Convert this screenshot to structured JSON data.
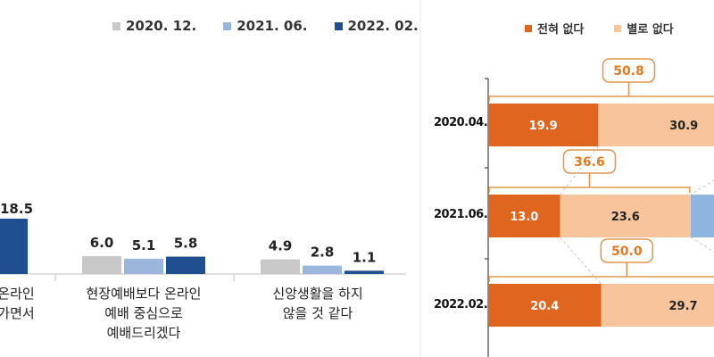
{
  "chart_data": [
    {
      "type": "bar",
      "categories": [
        "현장예배보다 온라인 예배 중심으로 예배드리겠다",
        "신앙생활을 하지 않을 것 같다"
      ],
      "partial_category_label": "온라인\n가면서",
      "partial_value": 18.5,
      "series": [
        {
          "name": "2020. 12.",
          "values": [
            6.0,
            4.9
          ],
          "color": "#c8c8c8"
        },
        {
          "name": "2021. 06.",
          "values": [
            5.1,
            2.8
          ],
          "color": "#9ab6dd"
        },
        {
          "name": "2022. 02.",
          "values": [
            5.8,
            1.1
          ],
          "color": "#1f4e91"
        }
      ],
      "value_labels": [
        [
          "6.0",
          "5.1",
          "5.8"
        ],
        [
          "4.9",
          "2.8",
          "1.1"
        ]
      ],
      "category_display": [
        "현장예배보다 온라인\n예배 중심으로\n예배드리겠다",
        "신앙생활을 하지\n않을 것 같다"
      ],
      "legend_position": "top-right",
      "grid": false
    },
    {
      "type": "bar",
      "orientation": "horizontal",
      "stacked": true,
      "categories": [
        "2020.04.",
        "2021.06.",
        "2022.02."
      ],
      "series": [
        {
          "name": "전혀 없다",
          "values": [
            19.9,
            13.0,
            20.4
          ],
          "color": "#e0651f"
        },
        {
          "name": "별로 없다",
          "values": [
            30.9,
            23.6,
            29.7
          ],
          "color": "#f8c49b"
        }
      ],
      "totals": [
        "50.8",
        "36.6",
        "50.0"
      ],
      "value_labels": [
        [
          "19.9",
          "30.9"
        ],
        [
          "13.0",
          "23.6"
        ],
        [
          "20.4",
          "29.7"
        ]
      ],
      "next_segment_color": "#8eb4e0",
      "legend_position": "top",
      "grid": false
    }
  ]
}
